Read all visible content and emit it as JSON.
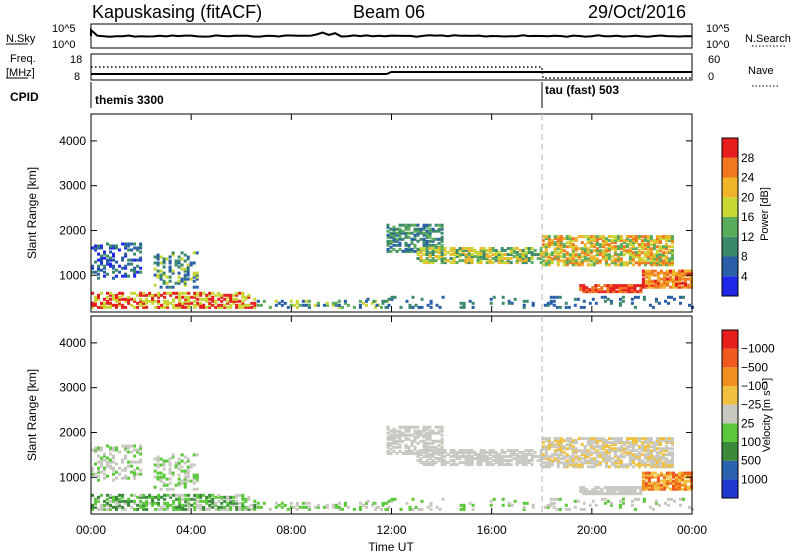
{
  "header": {
    "station": "Kapuskasing (fitACF)",
    "beam": "Beam 06",
    "date": "29/Oct/2016"
  },
  "strip_panels": {
    "nsky": {
      "label": "N.Sky",
      "ticks": [
        "10^5",
        "10^0"
      ]
    },
    "nsearch": {
      "label": "N.Search",
      "ticks": [
        "10^5",
        "10^0"
      ]
    },
    "freq": {
      "label_line1": "Freq.",
      "label_line2": "[MHz]",
      "ticks": [
        "18",
        "8"
      ]
    },
    "nave": {
      "label": "Nave",
      "ticks": [
        "60",
        "0"
      ]
    },
    "cpid": {
      "label": "CPID",
      "segments": [
        {
          "name": "themis 3300",
          "start_hour": 0.0
        },
        {
          "name": "tau (fast) 503",
          "start_hour": 18.0
        }
      ]
    }
  },
  "chart_data": [
    {
      "type": "heatmap",
      "ylabel": "Slant Range [km]",
      "ylim": [
        180,
        4600
      ],
      "yticks": [
        1000,
        2000,
        3000,
        4000
      ],
      "colorbar": {
        "label": "Power [dB]",
        "ticks": [
          "4",
          "8",
          "12",
          "16",
          "20",
          "24",
          "28"
        ],
        "colors": [
          "#1e28e6",
          "#2a5fa8",
          "#3a8a6a",
          "#5aab5a",
          "#c8d634",
          "#f0b428",
          "#f07820",
          "#e61e1e"
        ]
      }
    },
    {
      "type": "heatmap",
      "ylabel": "Slant Range [km]",
      "ylim": [
        180,
        4600
      ],
      "yticks": [
        1000,
        2000,
        3000,
        4000
      ],
      "xlabel": "Time UT",
      "xticks": [
        "00:00",
        "04:00",
        "08:00",
        "12:00",
        "16:00",
        "20:00",
        "00:00"
      ],
      "colorbar": {
        "label": "Velocity [m s⁻¹]",
        "ticks": [
          "1000",
          "500",
          "100",
          "25",
          "−25",
          "−100",
          "−500",
          "−1000"
        ],
        "colors": [
          "#1e3ad2",
          "#2a62b0",
          "#3a8a3a",
          "#5ac83a",
          "#c8c8c0",
          "#f0c040",
          "#f09020",
          "#f05a1e",
          "#e61e1e"
        ]
      }
    }
  ]
}
